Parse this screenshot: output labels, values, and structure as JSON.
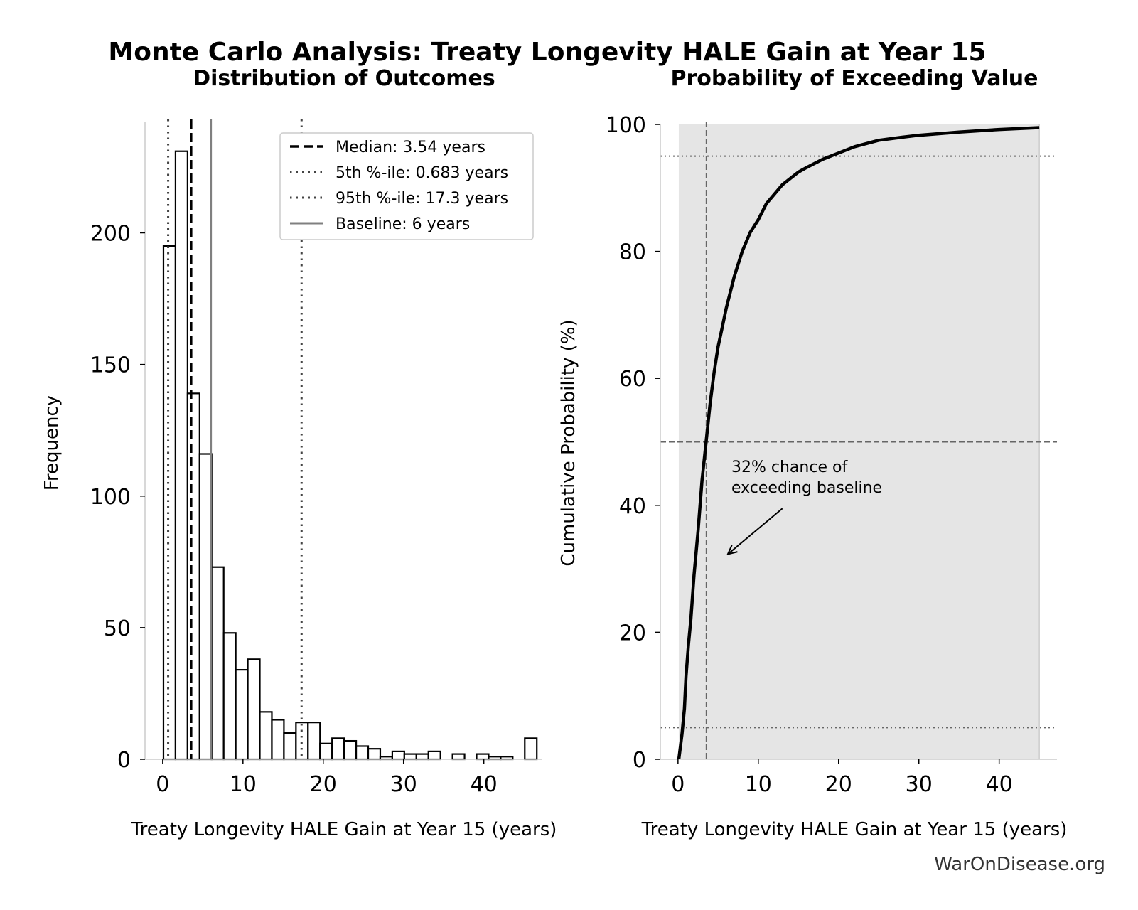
{
  "figure": {
    "title": "Monte Carlo Analysis: Treaty Longevity HALE Gain at Year 15",
    "watermark": "WarOnDisease.org"
  },
  "chart_data": [
    {
      "type": "bar",
      "subtype": "histogram",
      "title": "Distribution of Outcomes",
      "xlabel": "Treaty Longevity HALE Gain at Year 15 (years)",
      "ylabel": "Frequency",
      "xlim": [
        -2.2,
        47.2
      ],
      "ylim": [
        0,
        242
      ],
      "xticks": [
        0,
        10,
        20,
        30,
        40
      ],
      "yticks": [
        0,
        50,
        100,
        150,
        200
      ],
      "bin_start": 0.1,
      "bin_width": 1.5,
      "values": [
        195,
        231,
        139,
        116,
        73,
        48,
        34,
        38,
        18,
        15,
        10,
        14,
        14,
        6,
        8,
        7,
        5,
        4,
        1,
        3,
        2,
        2,
        3,
        0,
        2,
        0,
        2,
        1,
        1,
        0,
        8
      ],
      "reference_lines": [
        {
          "label": "Median: 3.54 years",
          "x": 3.54,
          "style": "dashed",
          "color": "#000000"
        },
        {
          "label": "5th %-ile: 0.683 years",
          "x": 0.683,
          "style": "dotted",
          "color": "#444444"
        },
        {
          "label": "95th %-ile: 17.3 years",
          "x": 17.3,
          "style": "dotted",
          "color": "#444444"
        },
        {
          "label": "Baseline: 6 years",
          "x": 6,
          "style": "solid",
          "color": "#808080"
        }
      ],
      "legend": "top-right",
      "grid": false
    },
    {
      "type": "line",
      "title": "Probability of Exceeding Value",
      "xlabel": "Treaty Longevity HALE Gain at Year 15 (years)",
      "ylabel": "Cumulative Probability (%)",
      "xlim": [
        -2.2,
        47.2
      ],
      "ylim": [
        0,
        100
      ],
      "xticks": [
        0,
        10,
        20,
        30,
        40
      ],
      "yticks": [
        0,
        20,
        40,
        60,
        80,
        100
      ],
      "series": [
        {
          "x": [
            0.1,
            0.5,
            0.8,
            1.0,
            1.3,
            1.6,
            2.0,
            2.5,
            3.0,
            3.5,
            4.0,
            4.5,
            5.0,
            5.5,
            6.0,
            7.0,
            8.0,
            9.0,
            10.0,
            11.0,
            12.0,
            13.0,
            14.0,
            15.0,
            16.0,
            18.0,
            20.0,
            22.0,
            25.0,
            28.0,
            30.0,
            35.0,
            40.0,
            45.0
          ],
          "y": [
            0,
            4,
            8,
            13,
            18,
            22,
            29,
            36,
            44,
            50,
            56,
            61,
            65,
            68,
            71,
            76,
            80,
            83,
            85,
            87.5,
            89,
            90.5,
            91.5,
            92.5,
            93.2,
            94.5,
            95.5,
            96.5,
            97.5,
            98,
            98.3,
            98.8,
            99.2,
            99.5
          ]
        }
      ],
      "fill_under": true,
      "reference_lines": [
        {
          "orientation": "vertical",
          "x": 3.54,
          "style": "dashed",
          "color": "#666666"
        },
        {
          "orientation": "horizontal",
          "y": 50,
          "style": "dashed",
          "color": "#666666"
        },
        {
          "orientation": "horizontal",
          "y": 95,
          "style": "dotted",
          "color": "#666666"
        },
        {
          "orientation": "horizontal",
          "y": 5,
          "style": "dotted",
          "color": "#666666"
        }
      ],
      "annotation": {
        "line1": "32% chance of",
        "line2": "exceeding baseline",
        "arrow_from": [
          13,
          39.5
        ],
        "arrow_to": [
          6.2,
          32.3
        ]
      },
      "grid": false
    }
  ]
}
